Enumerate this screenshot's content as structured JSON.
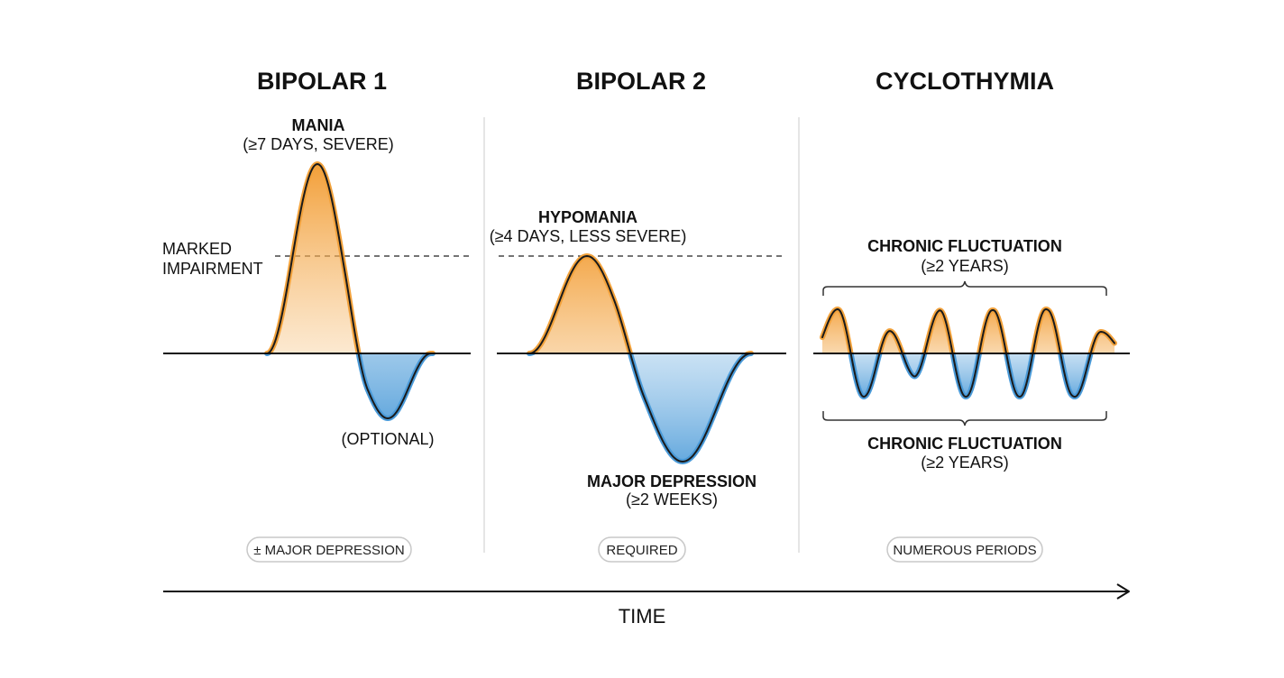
{
  "colors": {
    "mania": "#f2a23c",
    "depression": "#4a9ad8",
    "outline": "#1a1a1a"
  },
  "axis": {
    "label": "TIME"
  },
  "panels": [
    {
      "title": "BIPOLAR 1",
      "peak_label": "MANIA",
      "peak_sub": "(≥7 DAYS, SEVERE)",
      "threshold_label_1": "MARKED",
      "threshold_label_2": "IMPAIRMENT",
      "trough_label": "(OPTIONAL)",
      "pill": "± MAJOR DEPRESSION"
    },
    {
      "title": "BIPOLAR 2",
      "peak_label": "HYPOMANIA",
      "peak_sub": "(≥4 DAYS, LESS SEVERE)",
      "trough_label": "MAJOR DEPRESSION",
      "trough_sub": "(≥2 WEEKS)",
      "pill": "REQUIRED"
    },
    {
      "title": "CYCLOTHYMIA",
      "top_label": "CHRONIC FLUCTUATION",
      "top_sub": "(≥2 YEARS)",
      "bottom_label": "CHRONIC FLUCTUATION",
      "bottom_sub": "(≥2 YEARS)",
      "pill": "NUMEROUS PERIODS"
    }
  ]
}
